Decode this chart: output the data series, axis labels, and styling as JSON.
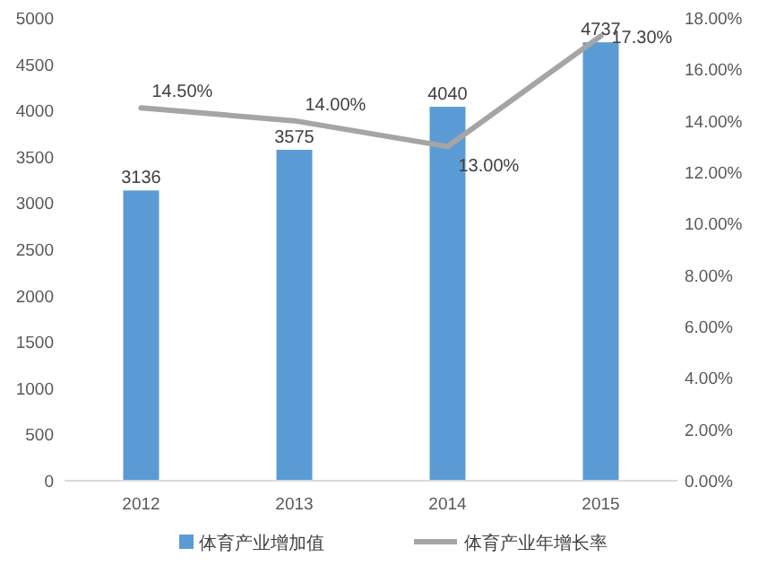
{
  "chart_data": {
    "type": "bar",
    "categories": [
      "2012",
      "2013",
      "2014",
      "2015"
    ],
    "series": [
      {
        "name": "体育产业增加值",
        "color": "#5b9bd5",
        "values": [
          3136,
          3575,
          4040,
          4737
        ],
        "value_labels": [
          "3136",
          "3575",
          "4040",
          "4737"
        ]
      },
      {
        "name": "体育产业年增长率",
        "type": "line",
        "axis": "y2",
        "color": "#a5a5a5",
        "values": [
          14.5,
          14.0,
          13.0,
          17.3
        ],
        "value_labels": [
          "14.50%",
          "14.00%",
          "13.00%",
          "17.30%"
        ],
        "marker": "none"
      }
    ],
    "ylim": [
      0,
      5000
    ],
    "yticks": [
      0,
      500,
      1000,
      1500,
      2000,
      2500,
      3000,
      3500,
      4000,
      4500,
      5000
    ],
    "y2lim": [
      0,
      18
    ],
    "y2ticks": [
      {
        "value": 0,
        "label": "0.00%"
      },
      {
        "value": 2,
        "label": "2.00%"
      },
      {
        "value": 4,
        "label": "4.00%"
      },
      {
        "value": 6,
        "label": "6.00%"
      },
      {
        "value": 8,
        "label": "8.00%"
      },
      {
        "value": 10,
        "label": "10.00%"
      },
      {
        "value": 12,
        "label": "12.00%"
      },
      {
        "value": 14,
        "label": "14.00%"
      },
      {
        "value": 16,
        "label": "16.00%"
      },
      {
        "value": 18,
        "label": "18.00%"
      }
    ],
    "grid": false,
    "legend": "bottom"
  }
}
